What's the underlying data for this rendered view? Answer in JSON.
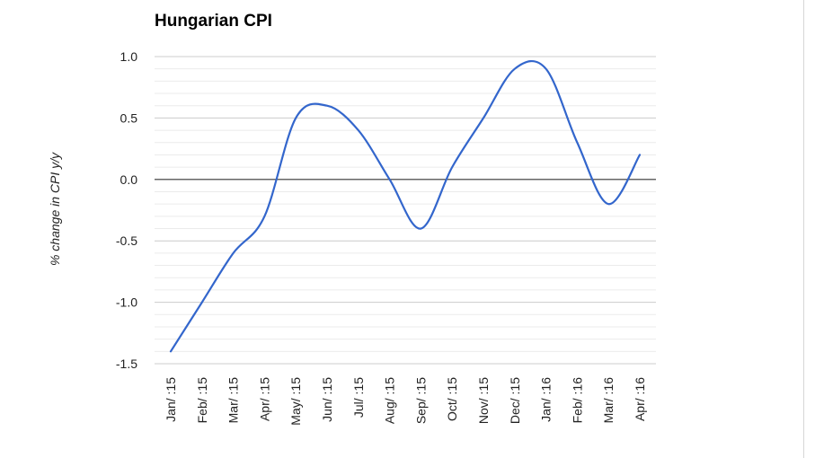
{
  "chart_data": {
    "type": "line",
    "title": "Hungarian CPI",
    "xlabel": "",
    "ylabel": "% change in CPI y/y",
    "categories": [
      "Jan/ :15",
      "Feb/ :15",
      "Mar/ :15",
      "Apr/ :15",
      "May/ :15",
      "Jun/ :15",
      "Jul/ :15",
      "Aug/ :15",
      "Sep/ :15",
      "Oct/ :15",
      "Nov/ :15",
      "Dec/ :15",
      "Jan/ :16",
      "Feb/ :16",
      "Mar/ :16",
      "Apr/ :16"
    ],
    "series": [
      {
        "values": [
          -1.4,
          -1.0,
          -0.6,
          -0.3,
          0.5,
          0.6,
          0.4,
          0.0,
          -0.4,
          0.1,
          0.5,
          0.9,
          0.9,
          0.3,
          -0.2,
          0.2
        ]
      }
    ],
    "ylim": [
      -1.5,
      1.0
    ],
    "yticks": [
      "1.0",
      "0.5",
      "0.0",
      "-0.5",
      "-1.0",
      "-1.5"
    ],
    "grid": true,
    "line_color": "#3366cc",
    "zero_line_color": "#333333",
    "grid_color": "#cccccc",
    "minor_grid_color": "#ebebeb"
  }
}
